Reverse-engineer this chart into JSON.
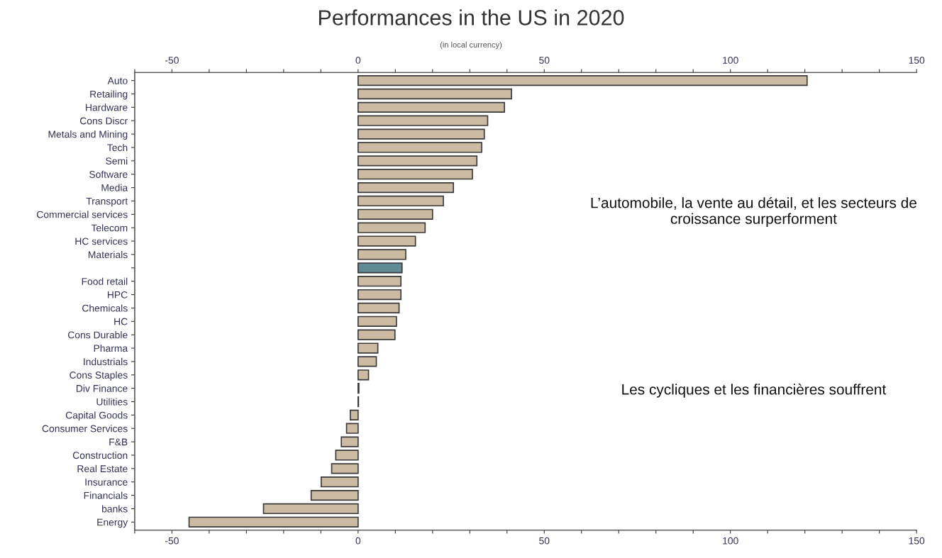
{
  "chart_data": {
    "type": "bar",
    "orientation": "horizontal",
    "title": "Performances in the US in 2020",
    "subtitle": "(in local currency)",
    "categories": [
      "Auto",
      "Retailing",
      "Hardware",
      "Cons Discr",
      "Metals and Mining",
      "Tech",
      "Semi",
      "Software",
      "Media",
      "Transport",
      "Commercial services",
      "Telecom",
      "HC services",
      "Materials",
      null,
      "Food retail",
      "HPC",
      "Chemicals",
      "HC",
      "Cons Durable",
      "Pharma",
      "Industrials",
      "Cons Staples",
      "Div Finance",
      "Utilities",
      "Capital Goods",
      "Consumer Services",
      "F&B",
      "Construction",
      "Real Estate",
      "Insurance",
      "Financials",
      "banks",
      "Energy"
    ],
    "values": [
      120.6,
      41.2,
      39.3,
      34.8,
      33.9,
      33.2,
      31.9,
      30.7,
      25.6,
      22.9,
      20.0,
      18.0,
      15.4,
      12.8,
      11.8,
      11.5,
      11.5,
      11.0,
      10.3,
      9.9,
      5.3,
      4.9,
      2.8,
      0.2,
      0.1,
      -2.1,
      -3.1,
      -4.5,
      -6.0,
      -7.1,
      -9.9,
      -12.6,
      -25.4,
      -45.4
    ],
    "colors": [
      "#cbbba3",
      "#cbbba3",
      "#cbbba3",
      "#cbbba3",
      "#cbbba3",
      "#cbbba3",
      "#cbbba3",
      "#cbbba3",
      "#cbbba3",
      "#cbbba3",
      "#cbbba3",
      "#cbbba3",
      "#cbbba3",
      "#cbbba3",
      "#5f8a96",
      "#cbbba3",
      "#cbbba3",
      "#cbbba3",
      "#cbbba3",
      "#cbbba3",
      "#cbbba3",
      "#cbbba3",
      "#cbbba3",
      "#cbbba3",
      "#cbbba3",
      "#cbbba3",
      "#cbbba3",
      "#cbbba3",
      "#cbbba3",
      "#cbbba3",
      "#cbbba3",
      "#cbbba3",
      "#cbbba3",
      "#cbbba3"
    ],
    "xlim": [
      -60,
      150
    ],
    "xticks": [
      {
        "value": -60,
        "label": null
      },
      -50,
      {
        "value": -40,
        "label": null
      },
      {
        "value": -30,
        "label": null
      },
      {
        "value": -20,
        "label": null
      },
      {
        "value": -10,
        "label": null
      },
      0,
      {
        "value": 10,
        "label": null
      },
      {
        "value": 20,
        "label": null
      },
      {
        "value": 30,
        "label": null
      },
      {
        "value": 40,
        "label": null
      },
      50,
      {
        "value": 60,
        "label": null
      },
      {
        "value": 70,
        "label": null
      },
      {
        "value": 80,
        "label": null
      },
      {
        "value": 90,
        "label": null
      },
      100,
      {
        "value": 110,
        "label": null
      },
      {
        "value": 120,
        "label": null
      },
      {
        "value": 130,
        "label": null
      },
      {
        "value": 140,
        "label": null
      },
      150
    ],
    "x2lim": [
      -60,
      150
    ],
    "x2ticks": [
      {
        "value": -60,
        "label": null
      },
      -50,
      {
        "value": -40,
        "label": null
      },
      {
        "value": -30,
        "label": null
      },
      {
        "value": -20,
        "label": null
      },
      {
        "value": -10,
        "label": null
      },
      0,
      {
        "value": 10,
        "label": null
      },
      {
        "value": 20,
        "label": null
      },
      {
        "value": 30,
        "label": null
      },
      {
        "value": 40,
        "label": null
      },
      50,
      {
        "value": 60,
        "label": null
      },
      {
        "value": 70,
        "label": null
      },
      {
        "value": 80,
        "label": null
      },
      {
        "value": 90,
        "label": null
      },
      100,
      {
        "value": 110,
        "label": null
      },
      {
        "value": 120,
        "label": null
      },
      {
        "value": 130,
        "label": null
      },
      {
        "value": 140,
        "label": null
      },
      150
    ],
    "annotations": [
      "L’automobile, la vente au détail, et les secteurs de croissance surperforment",
      "Les cycliques et les financières souffrent"
    ],
    "grid": false,
    "legend": false
  }
}
